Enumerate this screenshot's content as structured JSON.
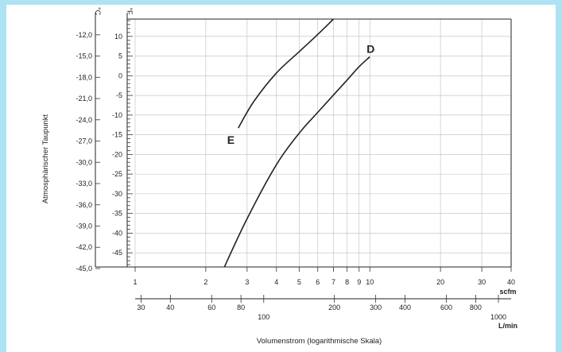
{
  "chart_data": {
    "type": "line",
    "ylabel": "Atmosphärischer Taupunkt",
    "xlabel": "Volumenstrom (logarithmische Skala)",
    "y_unit_c": "°C",
    "y_unit_f": "°F",
    "x_unit_scfm": "scfm",
    "x_unit_lmin": "L/min",
    "x_scale": "log",
    "xlim_scfm": [
      1,
      40
    ],
    "ylim_f": [
      -48.6,
      14.4
    ],
    "grid": true,
    "celsius_ticks": [
      "-12,0",
      "-15,0",
      "-18,0",
      "-21,0",
      "-24,0",
      "-27,0",
      "-30,0",
      "-33,0",
      "-36,0",
      "-39,0",
      "-42,0",
      "-45,0"
    ],
    "celsius_values": [
      -12,
      -15,
      -18,
      -21,
      -24,
      -27,
      -30,
      -33,
      -36,
      -39,
      -42,
      -45
    ],
    "fahrenheit_ticks": [
      "10",
      "5",
      "0",
      "-5",
      "-10",
      "-15",
      "-20",
      "-25",
      "-30",
      "-35",
      "-40",
      "-45"
    ],
    "fahrenheit_values": [
      10,
      5,
      0,
      -5,
      -10,
      -15,
      -20,
      -25,
      -30,
      -35,
      -40,
      -45
    ],
    "scfm_ticks": [
      "1",
      "2",
      "3",
      "4",
      "5",
      "6",
      "7",
      "8",
      "9",
      "10",
      "20",
      "30",
      "40"
    ],
    "scfm_values": [
      1,
      2,
      3,
      4,
      5,
      6,
      7,
      8,
      9,
      10,
      20,
      30,
      40
    ],
    "lmin_ticks": [
      "30",
      "40",
      "60",
      "80",
      "100",
      "200",
      "300",
      "400",
      "600",
      "800",
      "1000"
    ],
    "lmin_values": [
      30,
      40,
      60,
      80,
      100,
      200,
      300,
      400,
      600,
      800,
      1000
    ],
    "series": [
      {
        "name": "E",
        "points": [
          [
            2.75,
            -13.3
          ],
          [
            3.2,
            -6.6
          ],
          [
            4,
            0.7
          ],
          [
            5,
            6.1
          ],
          [
            6,
            10.5
          ],
          [
            7,
            14.4
          ]
        ]
      },
      {
        "name": "D",
        "points": [
          [
            2.4,
            -48.6
          ],
          [
            3,
            -36.3
          ],
          [
            4,
            -22.6
          ],
          [
            5,
            -14.6
          ],
          [
            6,
            -9.3
          ],
          [
            7,
            -4.9
          ],
          [
            8,
            -1.1
          ],
          [
            9,
            2.3
          ],
          [
            10,
            4.8
          ]
        ]
      }
    ]
  }
}
